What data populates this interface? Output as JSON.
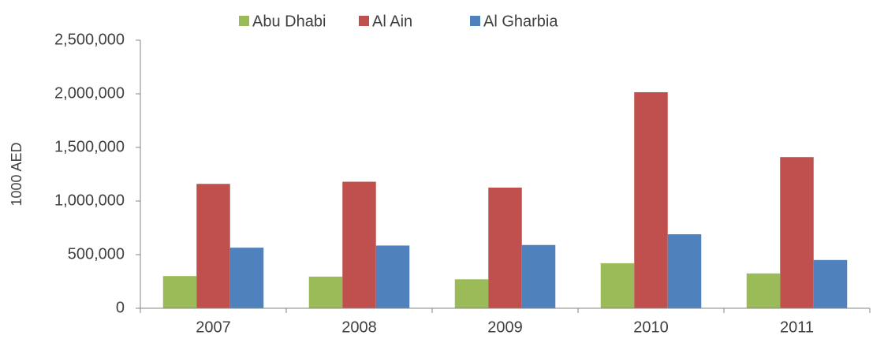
{
  "chart_data": {
    "type": "bar",
    "categories": [
      "2007",
      "2008",
      "2009",
      "2010",
      "2011"
    ],
    "y_label": "1000 AED",
    "series": [
      {
        "name": "Abu Dhabi",
        "color": "#9bbb59",
        "values": [
          300000,
          295000,
          270000,
          420000,
          325000
        ]
      },
      {
        "name": "Al Ain",
        "color": "#c0504d",
        "values": [
          1160000,
          1180000,
          1125000,
          2015000,
          1410000
        ]
      },
      {
        "name": "Al Gharbia",
        "color": "#4f81bd",
        "values": [
          565000,
          585000,
          590000,
          690000,
          450000
        ]
      }
    ],
    "ylim": [
      0,
      2500000
    ],
    "yticks": [
      0,
      {
        "value": 500000,
        "label": "500,000"
      },
      {
        "value": 1000000,
        "label": "1,000,000"
      },
      {
        "value": 1500000,
        "label": "1,500,000"
      },
      {
        "value": 2000000,
        "label": "2,000,000"
      },
      {
        "value": 2500000,
        "label": "2,500,000"
      }
    ],
    "grid": false,
    "legend": "top"
  }
}
